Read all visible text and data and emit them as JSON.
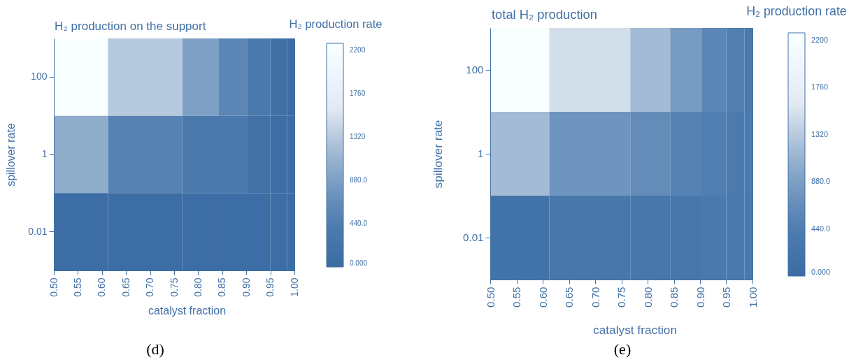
{
  "chart_data": [
    {
      "type": "heatmap",
      "title": "H₂ production on the support",
      "xlabel": "catalyst fraction",
      "ylabel": "spillover rate",
      "clabel": "H₂ production rate",
      "x": [
        0.5,
        0.725,
        0.809,
        0.877,
        0.931,
        0.969,
        1
      ],
      "xlim": [
        0.5,
        1
      ],
      "xticks": [
        {
          "value": 0.5,
          "label": "0.50"
        },
        {
          "value": 0.55,
          "label": "0.55"
        },
        {
          "value": 0.6,
          "label": "0.60"
        },
        {
          "value": 0.65,
          "label": "0.65"
        },
        {
          "value": 0.7,
          "label": "0.70"
        },
        {
          "value": 0.75,
          "label": "0.75"
        },
        {
          "value": 0.8,
          "label": "0.80"
        },
        {
          "value": 0.85,
          "label": "0.85"
        },
        {
          "value": 0.9,
          "label": "0.90"
        },
        {
          "value": 0.95,
          "label": "0.95"
        },
        {
          "value": 1,
          "label": "1.00"
        }
      ],
      "y_categories": [
        "100",
        "1",
        "0.01"
      ],
      "cells": [
        [
          2250,
          1330,
          900,
          570,
          360,
          110,
          40
        ],
        [
          1030,
          530,
          360,
          360,
          160,
          40,
          40
        ],
        [
          40,
          40,
          40,
          40,
          40,
          40,
          40
        ]
      ],
      "clim": [
        0,
        2270
      ],
      "cticks": [
        {
          "value": 0,
          "label": "0.000"
        },
        {
          "value": 440,
          "label": "440.0"
        },
        {
          "value": 880,
          "label": "880.0"
        },
        1320,
        1760,
        2200
      ],
      "annotations": [
        "(d)"
      ]
    },
    {
      "type": "heatmap",
      "title": "total H₂ production",
      "xlabel": "catalyst fraction",
      "ylabel": "spillover rate",
      "clabel": "H₂ production rate",
      "x": [
        0.5,
        0.725,
        0.809,
        0.877,
        0.931,
        0.969,
        1
      ],
      "xlim": [
        0.5,
        1
      ],
      "xticks": [
        {
          "value": 0.5,
          "label": "0.50"
        },
        {
          "value": 0.55,
          "label": "0.55"
        },
        {
          "value": 0.6,
          "label": "0.60"
        },
        {
          "value": 0.65,
          "label": "0.65"
        },
        {
          "value": 0.7,
          "label": "0.70"
        },
        {
          "value": 0.75,
          "label": "0.75"
        },
        {
          "value": 0.8,
          "label": "0.80"
        },
        {
          "value": 0.85,
          "label": "0.85"
        },
        {
          "value": 0.9,
          "label": "0.90"
        },
        {
          "value": 0.95,
          "label": "0.95"
        },
        {
          "value": 1,
          "label": "1.00"
        }
      ],
      "y_categories": [
        "100",
        "1",
        "0.01"
      ],
      "cells": [
        [
          2250,
          1500,
          1180,
          835,
          570,
          470,
          360
        ],
        [
          1180,
          750,
          645,
          520,
          470,
          385,
          385
        ],
        [
          180,
          295,
          295,
          295,
          360,
          360,
          360
        ]
      ],
      "clim": [
        0,
        2270
      ],
      "cticks": [
        {
          "value": 0,
          "label": "0.000"
        },
        {
          "value": 440,
          "label": "440.0"
        },
        {
          "value": 880,
          "label": "880.0"
        },
        1320,
        1760,
        2200
      ],
      "annotations": [
        "(e)"
      ]
    }
  ]
}
